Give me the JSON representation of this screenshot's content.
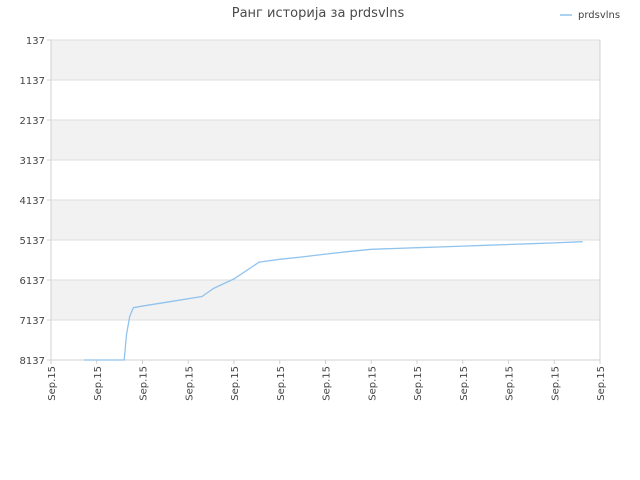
{
  "chart_data": {
    "type": "line",
    "title": "Ранг историја за prdsvlns",
    "legend": {
      "position": "top-right",
      "label": "prdsvlns"
    },
    "colors": {
      "series": "#90c3ee",
      "band": "#f2f2f2",
      "grid": "#dddddd",
      "axis": "#d0d0d0"
    },
    "y_axis": {
      "inverted": true,
      "ylim": [
        137,
        8137
      ],
      "ticks": [
        "137",
        "1137",
        "2137",
        "3137",
        "4137",
        "5137",
        "6137",
        "7137",
        "8137"
      ],
      "grid": true
    },
    "x_axis": {
      "tick_labels": [
        "Sep.15",
        "Sep.15",
        "Sep.15",
        "Sep.15",
        "Sep.15",
        "Sep.15",
        "Sep.15",
        "Sep.15",
        "Sep.15",
        "Sep.15",
        "Sep.15",
        "Sep.15",
        "Sep.15"
      ],
      "label_rotation": -90
    },
    "series": [
      {
        "name": "prdsvlns",
        "x": [
          0.72,
          1.6,
          1.65,
          1.72,
          1.8,
          2.05,
          2.6,
          3.3,
          3.55,
          4.0,
          4.55,
          5.0,
          5.5,
          6.0,
          6.55,
          7.0,
          7.5,
          8.0,
          8.55,
          9.0,
          9.5,
          10.0,
          10.5,
          11.0,
          11.62
        ],
        "y": [
          8137,
          8137,
          7500,
          7050,
          6830,
          6780,
          6680,
          6550,
          6350,
          6110,
          5690,
          5620,
          5560,
          5490,
          5420,
          5370,
          5350,
          5330,
          5310,
          5290,
          5270,
          5250,
          5230,
          5210,
          5180
        ]
      }
    ]
  }
}
